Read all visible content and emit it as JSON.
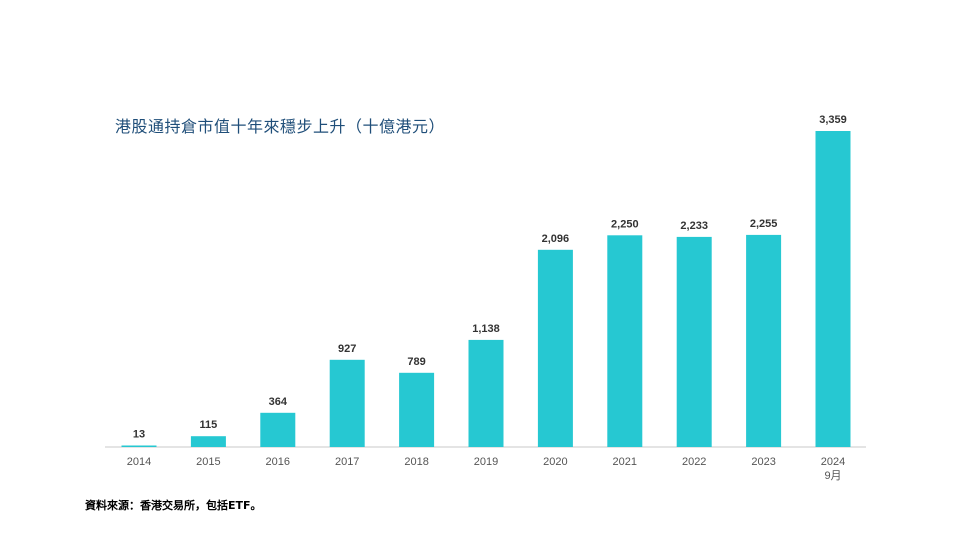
{
  "chart_data": {
    "type": "bar",
    "title": "港股通持倉市值十年來穩步上升（十億港元）",
    "categories": [
      "2014",
      "2015",
      "2016",
      "2017",
      "2018",
      "2019",
      "2020",
      "2021",
      "2022",
      "2023",
      "2024"
    ],
    "category_sublabels": [
      "",
      "",
      "",
      "",
      "",
      "",
      "",
      "",
      "",
      "",
      "9月"
    ],
    "values": [
      13,
      115,
      364,
      927,
      789,
      1138,
      2096,
      2250,
      2233,
      2255,
      3359
    ],
    "value_labels": [
      "13",
      "115",
      "364",
      "927",
      "789",
      "1,138",
      "2,096",
      "2,250",
      "2,233",
      "2,255",
      "3,359"
    ],
    "ylim": [
      0,
      3359
    ],
    "xlabel": "",
    "ylabel": "",
    "bar_color": "#26c8d2"
  },
  "source_note": "資料來源：香港交易所，包括ETF。"
}
